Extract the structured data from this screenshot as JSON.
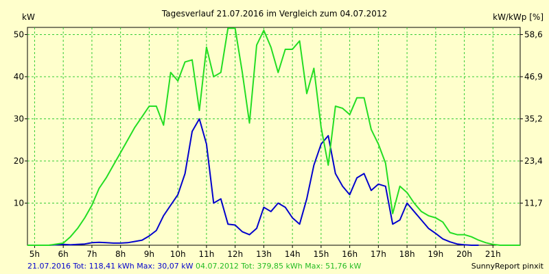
{
  "chart_data": {
    "type": "line",
    "title": "Tagesverlauf 21.07.2016 im Vergleich zum 04.07.2012",
    "ylabel_left": "kW",
    "ylabel_right": "kW/kWp [%]",
    "x_ticks": [
      "5h",
      "6h",
      "7h",
      "8h",
      "9h",
      "10h",
      "11h",
      "12h",
      "13h",
      "14h",
      "15h",
      "16h",
      "17h",
      "18h",
      "19h",
      "20h",
      "21h"
    ],
    "y_ticks_left": [
      10,
      20,
      30,
      40,
      50
    ],
    "y_ticks_right": [
      "11,7",
      "23,4",
      "35,2",
      "46,9",
      "58,6"
    ],
    "xlim": [
      4.75,
      21.95
    ],
    "ylim": [
      0,
      51.7
    ],
    "grid": true,
    "colors": {
      "series1": "#0000CC",
      "series2": "#22DD22",
      "grid": "#33CC33",
      "plot_bg": "#FFFFCC"
    },
    "series": [
      {
        "name": "21.07.2016",
        "x": [
          4.75,
          5,
          5.5,
          6,
          6.25,
          6.5,
          6.75,
          7,
          7.25,
          7.5,
          7.75,
          8,
          8.25,
          8.5,
          8.75,
          9,
          9.25,
          9.5,
          9.75,
          10,
          10.25,
          10.5,
          10.75,
          11,
          11.25,
          11.5,
          11.75,
          12,
          12.25,
          12.5,
          12.75,
          13,
          13.25,
          13.5,
          13.75,
          14,
          14.25,
          14.5,
          14.75,
          15,
          15.25,
          15.5,
          15.75,
          16,
          16.25,
          16.5,
          16.75,
          17,
          17.25,
          17.5,
          17.75,
          18,
          18.25,
          18.5,
          18.75,
          19,
          19.25,
          19.5,
          19.75,
          20,
          20.25,
          20.5
        ],
        "y": [
          0,
          0,
          0,
          0.2,
          0.1,
          0.2,
          0.3,
          0.6,
          0.7,
          0.6,
          0.5,
          0.5,
          0.6,
          0.9,
          1.2,
          2.2,
          3.5,
          7,
          9.5,
          12,
          17,
          27,
          30,
          24,
          10,
          11,
          5,
          4.8,
          3.2,
          2.5,
          4,
          9,
          8,
          10,
          9,
          6.5,
          5,
          11,
          19,
          24,
          26,
          17,
          14,
          12,
          16,
          17,
          13,
          14.5,
          14,
          5,
          6,
          10,
          8,
          6,
          4,
          2.8,
          1.5,
          0.8,
          0.3,
          0.1,
          0,
          0
        ]
      },
      {
        "name": "04.07.2012",
        "x": [
          4.75,
          5,
          5.5,
          6,
          6.25,
          6.5,
          6.75,
          7,
          7.25,
          7.5,
          7.75,
          8,
          8.25,
          8.5,
          8.75,
          9,
          9.25,
          9.5,
          9.75,
          10,
          10.25,
          10.5,
          10.75,
          11,
          11.25,
          11.5,
          11.75,
          12,
          12.25,
          12.5,
          12.75,
          13,
          13.25,
          13.5,
          13.75,
          14,
          14.25,
          14.5,
          14.75,
          15,
          15.25,
          15.5,
          15.75,
          16,
          16.25,
          16.5,
          16.75,
          17,
          17.25,
          17.5,
          17.75,
          18,
          18.25,
          18.5,
          18.75,
          19,
          19.25,
          19.5,
          19.75,
          20,
          20.25,
          20.5,
          20.75,
          21,
          21.25,
          21.5,
          21.95
        ],
        "y": [
          0,
          0,
          0,
          0.5,
          2,
          4,
          6.5,
          9.5,
          13.5,
          16,
          19,
          22,
          25,
          28,
          30.5,
          33,
          33,
          28.5,
          41,
          39,
          43.5,
          44,
          32,
          47,
          40,
          41,
          51.5,
          51.5,
          41,
          29,
          47.5,
          51,
          47,
          41,
          46.5,
          46.5,
          48.5,
          36,
          42,
          28,
          19,
          33,
          32.5,
          31,
          35,
          35,
          27.5,
          24,
          19.5,
          7.5,
          14,
          12.5,
          10,
          8,
          7,
          6.5,
          5.5,
          3,
          2.5,
          2.5,
          2,
          1.2,
          0.6,
          0.2,
          0,
          0,
          0
        ]
      }
    ]
  },
  "footer": {
    "series1_label": "21.07.2016 Tot: 118,41 kWh Max: 30,07 kW",
    "series2_label": "04.07.2012 Tot: 379,85 kWh Max: 51,76 kW",
    "credit": "SunnyReport pinxit"
  }
}
